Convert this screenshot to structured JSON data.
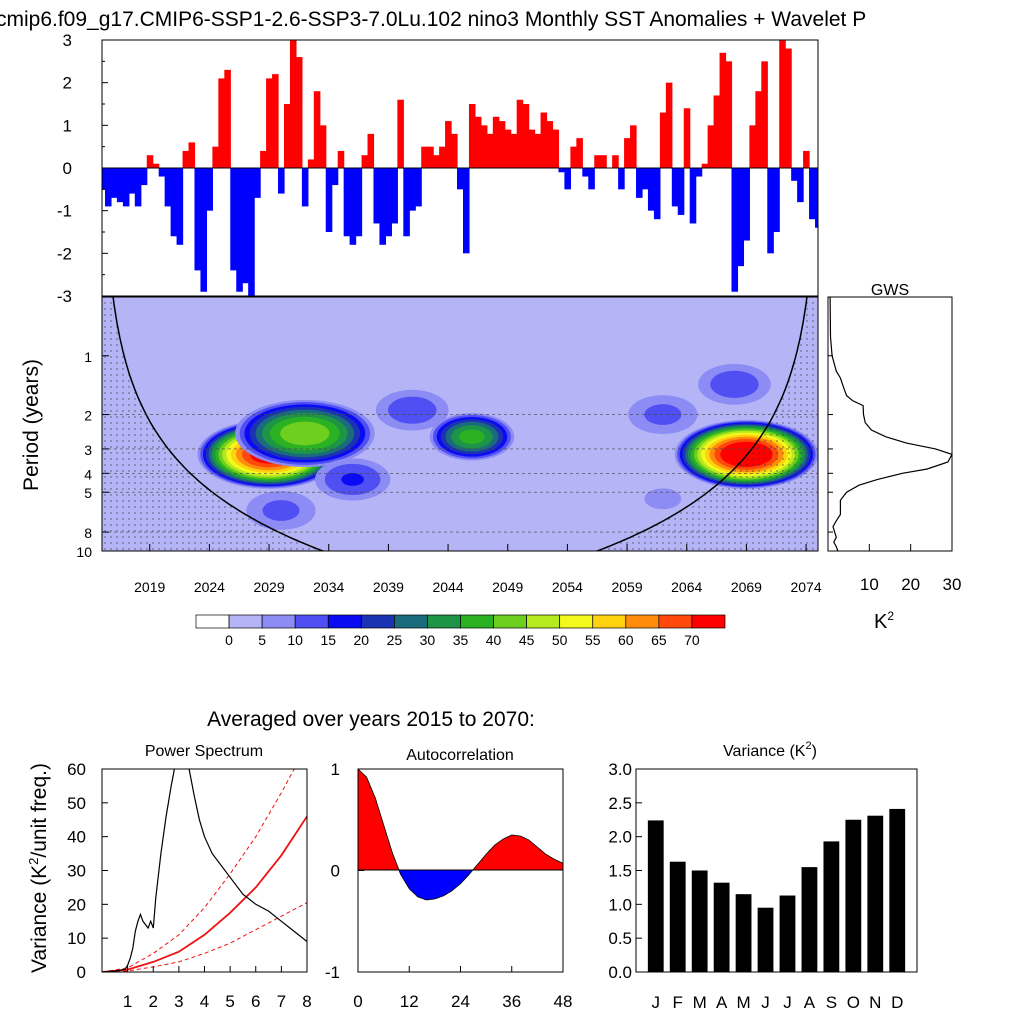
{
  "title": "cmip6.f09_g17.CMIP6-SSP1-2.6-SSP3-7.0Lu.102 nino3 Monthly SST Anomalies + Wavelet P",
  "subtitle": "Averaged over years 2015 to 2070:",
  "colors": {
    "positive": "#ff0000",
    "negative": "#0000ff",
    "line": "#000000",
    "red_curve": "#ee1111"
  },
  "chart_data": [
    {
      "name": "anomaly",
      "type": "area",
      "ylim": [
        -3,
        3
      ],
      "yticks": [
        "3",
        "2",
        "1",
        "0",
        "-1",
        "-2",
        "-3"
      ],
      "x": [
        2015.0,
        2015.5,
        2016.0,
        2016.5,
        2017.0,
        2017.5,
        2018.0,
        2018.5,
        2019.0,
        2019.5,
        2020.0,
        2020.5,
        2021.0,
        2021.5,
        2022.0,
        2022.5,
        2023.0,
        2023.5,
        2024.0,
        2024.5,
        2025.0,
        2025.5,
        2026.0,
        2026.5,
        2027.0,
        2027.5,
        2028.0,
        2028.5,
        2029.0,
        2029.5,
        2030.0,
        2030.5,
        2031.0,
        2031.5,
        2032.0,
        2032.5,
        2033.0,
        2033.5,
        2034.0,
        2034.5,
        2035.0,
        2035.5,
        2036.0,
        2036.5,
        2037.0,
        2037.5,
        2038.0,
        2038.5,
        2039.0,
        2039.5,
        2040.0,
        2040.5,
        2041.0,
        2041.5,
        2042.0,
        2042.5,
        2043.0,
        2043.5,
        2044.0,
        2044.5,
        2045.0,
        2045.5,
        2046.0,
        2046.5,
        2047.0,
        2047.5,
        2048.0,
        2048.5,
        2049.0,
        2049.5,
        2050.0,
        2050.5,
        2051.0,
        2051.5,
        2052.0,
        2052.5,
        2053.0,
        2053.5,
        2054.0,
        2054.5,
        2055.0,
        2055.5,
        2056.0,
        2056.5,
        2057.0,
        2057.5,
        2058.0,
        2058.5,
        2059.0,
        2059.5,
        2060.0,
        2060.5,
        2061.0,
        2061.5,
        2062.0,
        2062.5,
        2063.0,
        2063.5,
        2064.0,
        2064.5,
        2065.0,
        2065.5,
        2066.0,
        2066.5,
        2067.0,
        2067.5,
        2068.0,
        2068.5,
        2069.0,
        2069.5,
        2070.0,
        2070.5,
        2071.0,
        2071.5,
        2072.0,
        2072.5,
        2073.0,
        2073.5,
        2074.0,
        2074.5,
        2075.0
      ],
      "values": [
        -0.5,
        -0.9,
        -0.7,
        -0.8,
        -0.9,
        -0.6,
        -0.9,
        -0.4,
        0.3,
        0.1,
        -0.2,
        -0.9,
        -1.6,
        -1.8,
        0.4,
        0.6,
        -2.4,
        -2.9,
        -1.0,
        0.5,
        2.1,
        2.3,
        -2.4,
        -2.9,
        -2.7,
        -3.0,
        -0.7,
        0.4,
        2.1,
        2.2,
        -0.6,
        1.5,
        3.0,
        2.6,
        -0.9,
        0.2,
        1.8,
        1.0,
        -1.5,
        -0.4,
        0.4,
        -1.6,
        -1.8,
        -1.6,
        0.3,
        0.8,
        -1.3,
        -1.8,
        -1.6,
        -1.3,
        1.6,
        -1.6,
        -1.0,
        -0.9,
        0.5,
        0.5,
        0.3,
        0.5,
        1.1,
        0.8,
        -0.5,
        -2.0,
        1.5,
        1.2,
        1.0,
        0.8,
        1.2,
        1.1,
        0.9,
        0.8,
        1.6,
        1.5,
        0.9,
        0.8,
        1.3,
        1.1,
        0.9,
        -0.1,
        -0.5,
        0.5,
        0.7,
        -0.2,
        -0.5,
        0.3,
        0.3,
        0.0,
        0.3,
        -0.5,
        0.7,
        1.0,
        -0.7,
        -0.5,
        -1.0,
        -1.2,
        1.3,
        2.0,
        -0.9,
        -1.1,
        1.4,
        -1.3,
        -0.2,
        0.1,
        1.0,
        1.7,
        2.7,
        2.5,
        -2.9,
        -2.3,
        -1.7,
        1.0,
        1.8,
        2.5,
        -2.0,
        -1.5,
        3.0,
        2.8,
        -0.3,
        -0.8,
        0.4,
        -1.2,
        -1.4
      ]
    },
    {
      "name": "wavelet",
      "type": "heatmap",
      "ylabel": "Period (years)",
      "yticks": [
        "1",
        "2",
        "3",
        "4",
        "5",
        "8",
        "10"
      ],
      "xticks": [
        "2019",
        "2024",
        "2029",
        "2034",
        "2039",
        "2044",
        "2049",
        "2054",
        "2059",
        "2064",
        "2069",
        "2074"
      ],
      "xlim": [
        2015,
        2075
      ],
      "ylim": [
        0.5,
        10
      ],
      "blobs": [
        {
          "x": 2029,
          "p": 3.2,
          "peak": 75
        },
        {
          "x": 2032,
          "p": 2.5,
          "peak": 45
        },
        {
          "x": 2046,
          "p": 2.6,
          "peak": 38
        },
        {
          "x": 2041,
          "p": 1.9,
          "peak": 14
        },
        {
          "x": 2036,
          "p": 4.3,
          "peak": 16
        },
        {
          "x": 2030,
          "p": 6.2,
          "peak": 12
        },
        {
          "x": 2040,
          "p": 7.5,
          "peak": 5
        },
        {
          "x": 2062,
          "p": 2.0,
          "peak": 12
        },
        {
          "x": 2069,
          "p": 3.2,
          "peak": 80
        },
        {
          "x": 2068,
          "p": 1.4,
          "peak": 14
        },
        {
          "x": 2062,
          "p": 5.4,
          "peak": 6
        }
      ]
    },
    {
      "name": "colorbar",
      "labels": [
        "0",
        "5",
        "10",
        "15",
        "20",
        "25",
        "30",
        "35",
        "40",
        "45",
        "50",
        "55",
        "60",
        "65",
        "70"
      ],
      "colors": [
        "#ffffff",
        "#b4b4f6",
        "#8c8cf4",
        "#4f4ff3",
        "#0b0bf3",
        "#1c32b4",
        "#1a6c7d",
        "#1d9446",
        "#2bb222",
        "#6fcf1e",
        "#b6e91e",
        "#f2f91c",
        "#ffd20f",
        "#ff8c0a",
        "#ff480a",
        "#ff0000"
      ]
    },
    {
      "name": "gws",
      "type": "line",
      "title": "GWS",
      "xlabel": "K",
      "xlabel_sup": "2",
      "xticks": [
        "10",
        "20",
        "30"
      ],
      "xlim": [
        0,
        30
      ],
      "p": [
        0.5,
        0.8,
        1.0,
        1.2,
        1.3,
        1.4,
        1.5,
        1.6,
        1.7,
        1.8,
        2.0,
        2.2,
        2.4,
        2.6,
        2.8,
        3.0,
        3.2,
        3.5,
        3.8,
        4.0,
        4.3,
        4.6,
        5.0,
        5.5,
        6.0,
        6.5,
        7.0,
        7.5,
        8.0,
        8.5,
        9.0,
        9.5,
        10.0
      ],
      "values": [
        0.5,
        0.6,
        1.0,
        2.0,
        3.0,
        3.5,
        4.0,
        4.5,
        6.0,
        8.5,
        8.6,
        9.0,
        10.5,
        14.0,
        19.0,
        26.0,
        30.0,
        29.0,
        24.0,
        18.0,
        12.0,
        7.5,
        4.5,
        3.0,
        3.0,
        3.0,
        2.0,
        1.2,
        1.6,
        2.0,
        1.4,
        2.0,
        2.4
      ]
    },
    {
      "name": "power_spectrum",
      "type": "line",
      "title": "Power Spectrum",
      "ylabel": "Variance (K",
      "ylabel_sup": "2",
      "ylabel_tail": "/unit freq.)",
      "xlim": [
        0,
        8
      ],
      "ylim": [
        0,
        60
      ],
      "xticks": [
        "1",
        "2",
        "3",
        "4",
        "5",
        "6",
        "7",
        "8"
      ],
      "yticks": [
        "0",
        "10",
        "20",
        "30",
        "40",
        "50",
        "60"
      ],
      "x": [
        0.0,
        0.5,
        0.9,
        1.0,
        1.1,
        1.2,
        1.3,
        1.4,
        1.5,
        1.6,
        1.8,
        1.9,
        2.0,
        2.1,
        2.3,
        2.5,
        2.7,
        2.9,
        3.0,
        3.2,
        3.4,
        3.6,
        3.8,
        4.0,
        4.3,
        4.6,
        5.0,
        5.5,
        6.0,
        6.5,
        7.0,
        7.5,
        8.0
      ],
      "values": [
        0.0,
        0.3,
        0.8,
        2.0,
        4.0,
        7.0,
        12.0,
        15.0,
        17.0,
        15.0,
        13.0,
        15.0,
        13.0,
        22.0,
        35.0,
        46.0,
        55.0,
        63.0,
        67.0,
        65.0,
        60.0,
        52.0,
        45.0,
        40.0,
        35.0,
        32.0,
        28.0,
        23.0,
        20.0,
        18.0,
        15.0,
        12.0,
        9.0
      ],
      "red_mid": [
        0,
        0.7,
        3,
        6,
        11,
        17.5,
        25,
        34.5,
        46
      ],
      "red_upper": [
        0,
        1.2,
        5.5,
        11,
        19,
        29,
        40,
        53,
        67
      ],
      "red_lower": [
        0,
        0.3,
        1.5,
        3,
        5.5,
        8.5,
        12.5,
        16.5,
        20.5
      ]
    },
    {
      "name": "autocorrelation",
      "type": "area",
      "title": "Autocorrelation",
      "xlim": [
        0,
        48
      ],
      "ylim": [
        -1,
        1
      ],
      "xticks": [
        "0",
        "12",
        "24",
        "36",
        "48"
      ],
      "yticks": [
        "1",
        "0",
        "-1"
      ],
      "x": [
        0,
        2,
        4,
        6,
        8,
        10,
        12,
        14,
        16,
        18,
        20,
        22,
        24,
        26,
        28,
        30,
        32,
        34,
        36,
        38,
        40,
        42,
        44,
        46,
        48
      ],
      "values": [
        1.0,
        0.92,
        0.72,
        0.45,
        0.18,
        -0.04,
        -0.18,
        -0.26,
        -0.29,
        -0.28,
        -0.25,
        -0.2,
        -0.13,
        -0.04,
        0.06,
        0.16,
        0.25,
        0.31,
        0.35,
        0.34,
        0.3,
        0.23,
        0.16,
        0.11,
        0.07
      ]
    },
    {
      "name": "variance",
      "type": "bar",
      "title": "Variance (K",
      "title_sup": "2",
      "title_tail": ")",
      "ylim": [
        0,
        3
      ],
      "yticks": [
        "0.0",
        "0.5",
        "1.0",
        "1.5",
        "2.0",
        "2.5",
        "3.0"
      ],
      "categories": [
        "J",
        "F",
        "M",
        "A",
        "M",
        "J",
        "J",
        "A",
        "S",
        "O",
        "N",
        "D"
      ],
      "values": [
        2.24,
        1.63,
        1.5,
        1.32,
        1.15,
        0.95,
        1.13,
        1.55,
        1.93,
        2.25,
        2.31,
        2.41
      ]
    }
  ]
}
